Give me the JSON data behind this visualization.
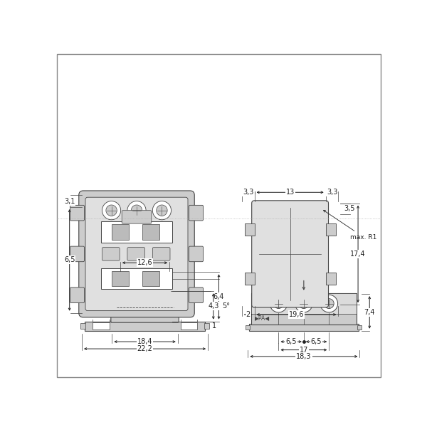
{
  "bg_color": "#ffffff",
  "line_color": "#444444",
  "part_fill": "#cccccc",
  "part_fill2": "#e0e0e0",
  "part_edge": "#444444",
  "dim_color": "#222222",
  "dim_fontsize": 7.0,
  "ann_fontsize": 6.5,
  "border_color": "#888888"
}
